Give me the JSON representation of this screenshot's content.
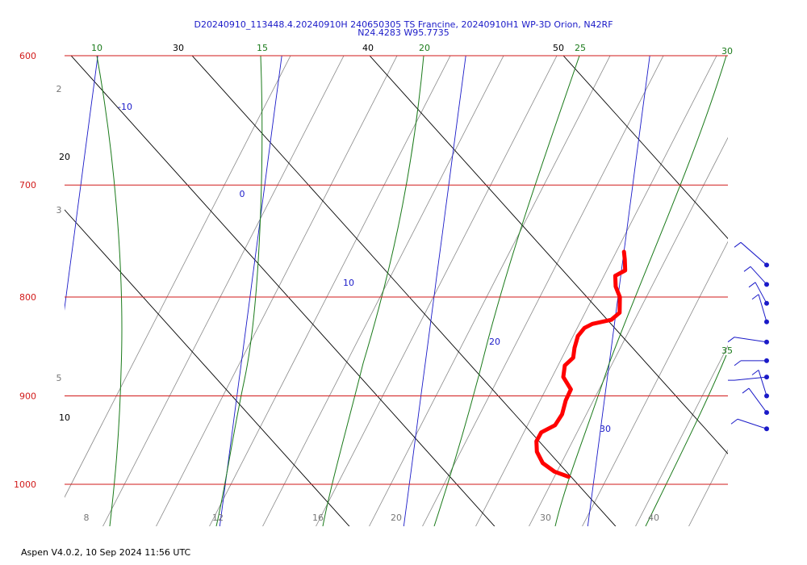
{
  "chart_data": {
    "type": "skew-t",
    "title": "D20240910_113448.4.20240910H 240650305 TS Francine, 20240910H1 WP-3D Orion, N42RF",
    "subtitle": "N24.4283 W95.7735",
    "footer": "Aspen V4.0.2, 10 Sep 2024  11:56 UTC",
    "pressure_levels": [
      "600",
      "700",
      "800",
      "900",
      "1000"
    ],
    "bottom_temperature_labels": [
      "8",
      "12",
      "16",
      "20",
      "30",
      "40"
    ],
    "isotherm_labels": [
      "-10",
      "0",
      "10",
      "20",
      "30"
    ],
    "dry_adiabat_labels": [
      "10",
      "20",
      "30",
      "40",
      "50"
    ],
    "moist_adiabat_labels": [
      "10",
      "15",
      "20",
      "25",
      "30",
      "35"
    ],
    "mixing_ratio_labels": [
      "2",
      "3",
      "5"
    ],
    "colors": {
      "isobar": "#d11a1a",
      "isotherm": "#1a1ac8",
      "moist_adiabat": "#1a7a1a",
      "dry_adiabat": "#000000",
      "mixing_ratio": "#8a8a8a",
      "sounding": "#ff0000",
      "wind": "#1a1ac8"
    },
    "temperature_profile": [
      {
        "p": 991,
        "t": 28.6
      },
      {
        "p": 985,
        "t": 27.8
      },
      {
        "p": 975,
        "t": 27.1
      },
      {
        "p": 962,
        "t": 26.7
      },
      {
        "p": 950,
        "t": 26.6
      },
      {
        "p": 940,
        "t": 26.8
      },
      {
        "p": 932,
        "t": 27.5
      },
      {
        "p": 920,
        "t": 27.8
      },
      {
        "p": 905,
        "t": 27.9
      },
      {
        "p": 893,
        "t": 28.1
      },
      {
        "p": 880,
        "t": 27.6
      },
      {
        "p": 868,
        "t": 27.6
      },
      {
        "p": 860,
        "t": 28.0
      },
      {
        "p": 850,
        "t": 28.0
      },
      {
        "p": 838,
        "t": 28.1
      },
      {
        "p": 830,
        "t": 28.4
      },
      {
        "p": 826,
        "t": 28.8
      },
      {
        "p": 822,
        "t": 29.8
      },
      {
        "p": 815,
        "t": 30.2
      },
      {
        "p": 800,
        "t": 30.1
      },
      {
        "p": 790,
        "t": 29.8
      },
      {
        "p": 780,
        "t": 29.7
      },
      {
        "p": 775,
        "t": 30.2
      },
      {
        "p": 765,
        "t": 30.1
      },
      {
        "p": 758,
        "t": 30.0
      }
    ],
    "wind_barbs": [
      {
        "p": 770
      },
      {
        "p": 788
      },
      {
        "p": 806
      },
      {
        "p": 824
      },
      {
        "p": 844
      },
      {
        "p": 863
      },
      {
        "p": 880
      },
      {
        "p": 900
      },
      {
        "p": 918
      },
      {
        "p": 936
      }
    ]
  }
}
